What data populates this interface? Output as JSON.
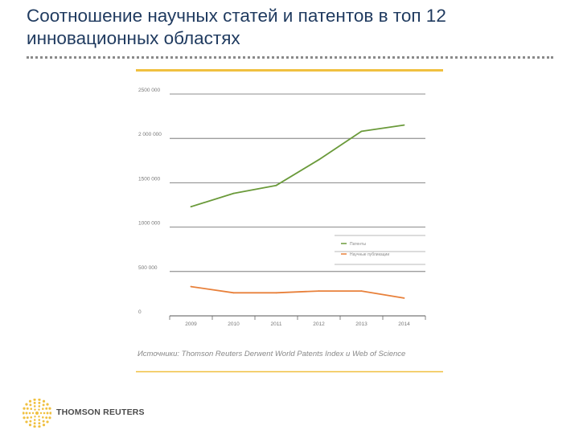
{
  "slide": {
    "title": "Соотношение научных статей и патентов в топ 12 инновационных областях"
  },
  "brand": {
    "logo_text": "THOMSON REUTERS",
    "accent_color": "#f0c040"
  },
  "chart_data": {
    "type": "line",
    "x": [
      "2009",
      "2010",
      "2011",
      "2012",
      "2013",
      "2014"
    ],
    "ylim": [
      0,
      2500000
    ],
    "yticks": [
      0,
      500000,
      1000000,
      1500000,
      2000000,
      2500000
    ],
    "ytick_labels": [
      "0",
      "500 000",
      "1000 000",
      "1500 000",
      "2 000 000",
      "2500 000"
    ],
    "series": [
      {
        "name": "Патенты",
        "color": "#6a9a3a",
        "values": [
          1230000,
          1380000,
          1470000,
          1760000,
          2080000,
          2150000
        ]
      },
      {
        "name": "Научные публикации",
        "color": "#e8803a",
        "values": [
          330000,
          260000,
          260000,
          280000,
          280000,
          200000
        ]
      }
    ],
    "legend_position": "right",
    "grid": true,
    "source": "Источники: Thomson Reuters Derwent World Patents Index и Web of Science"
  }
}
